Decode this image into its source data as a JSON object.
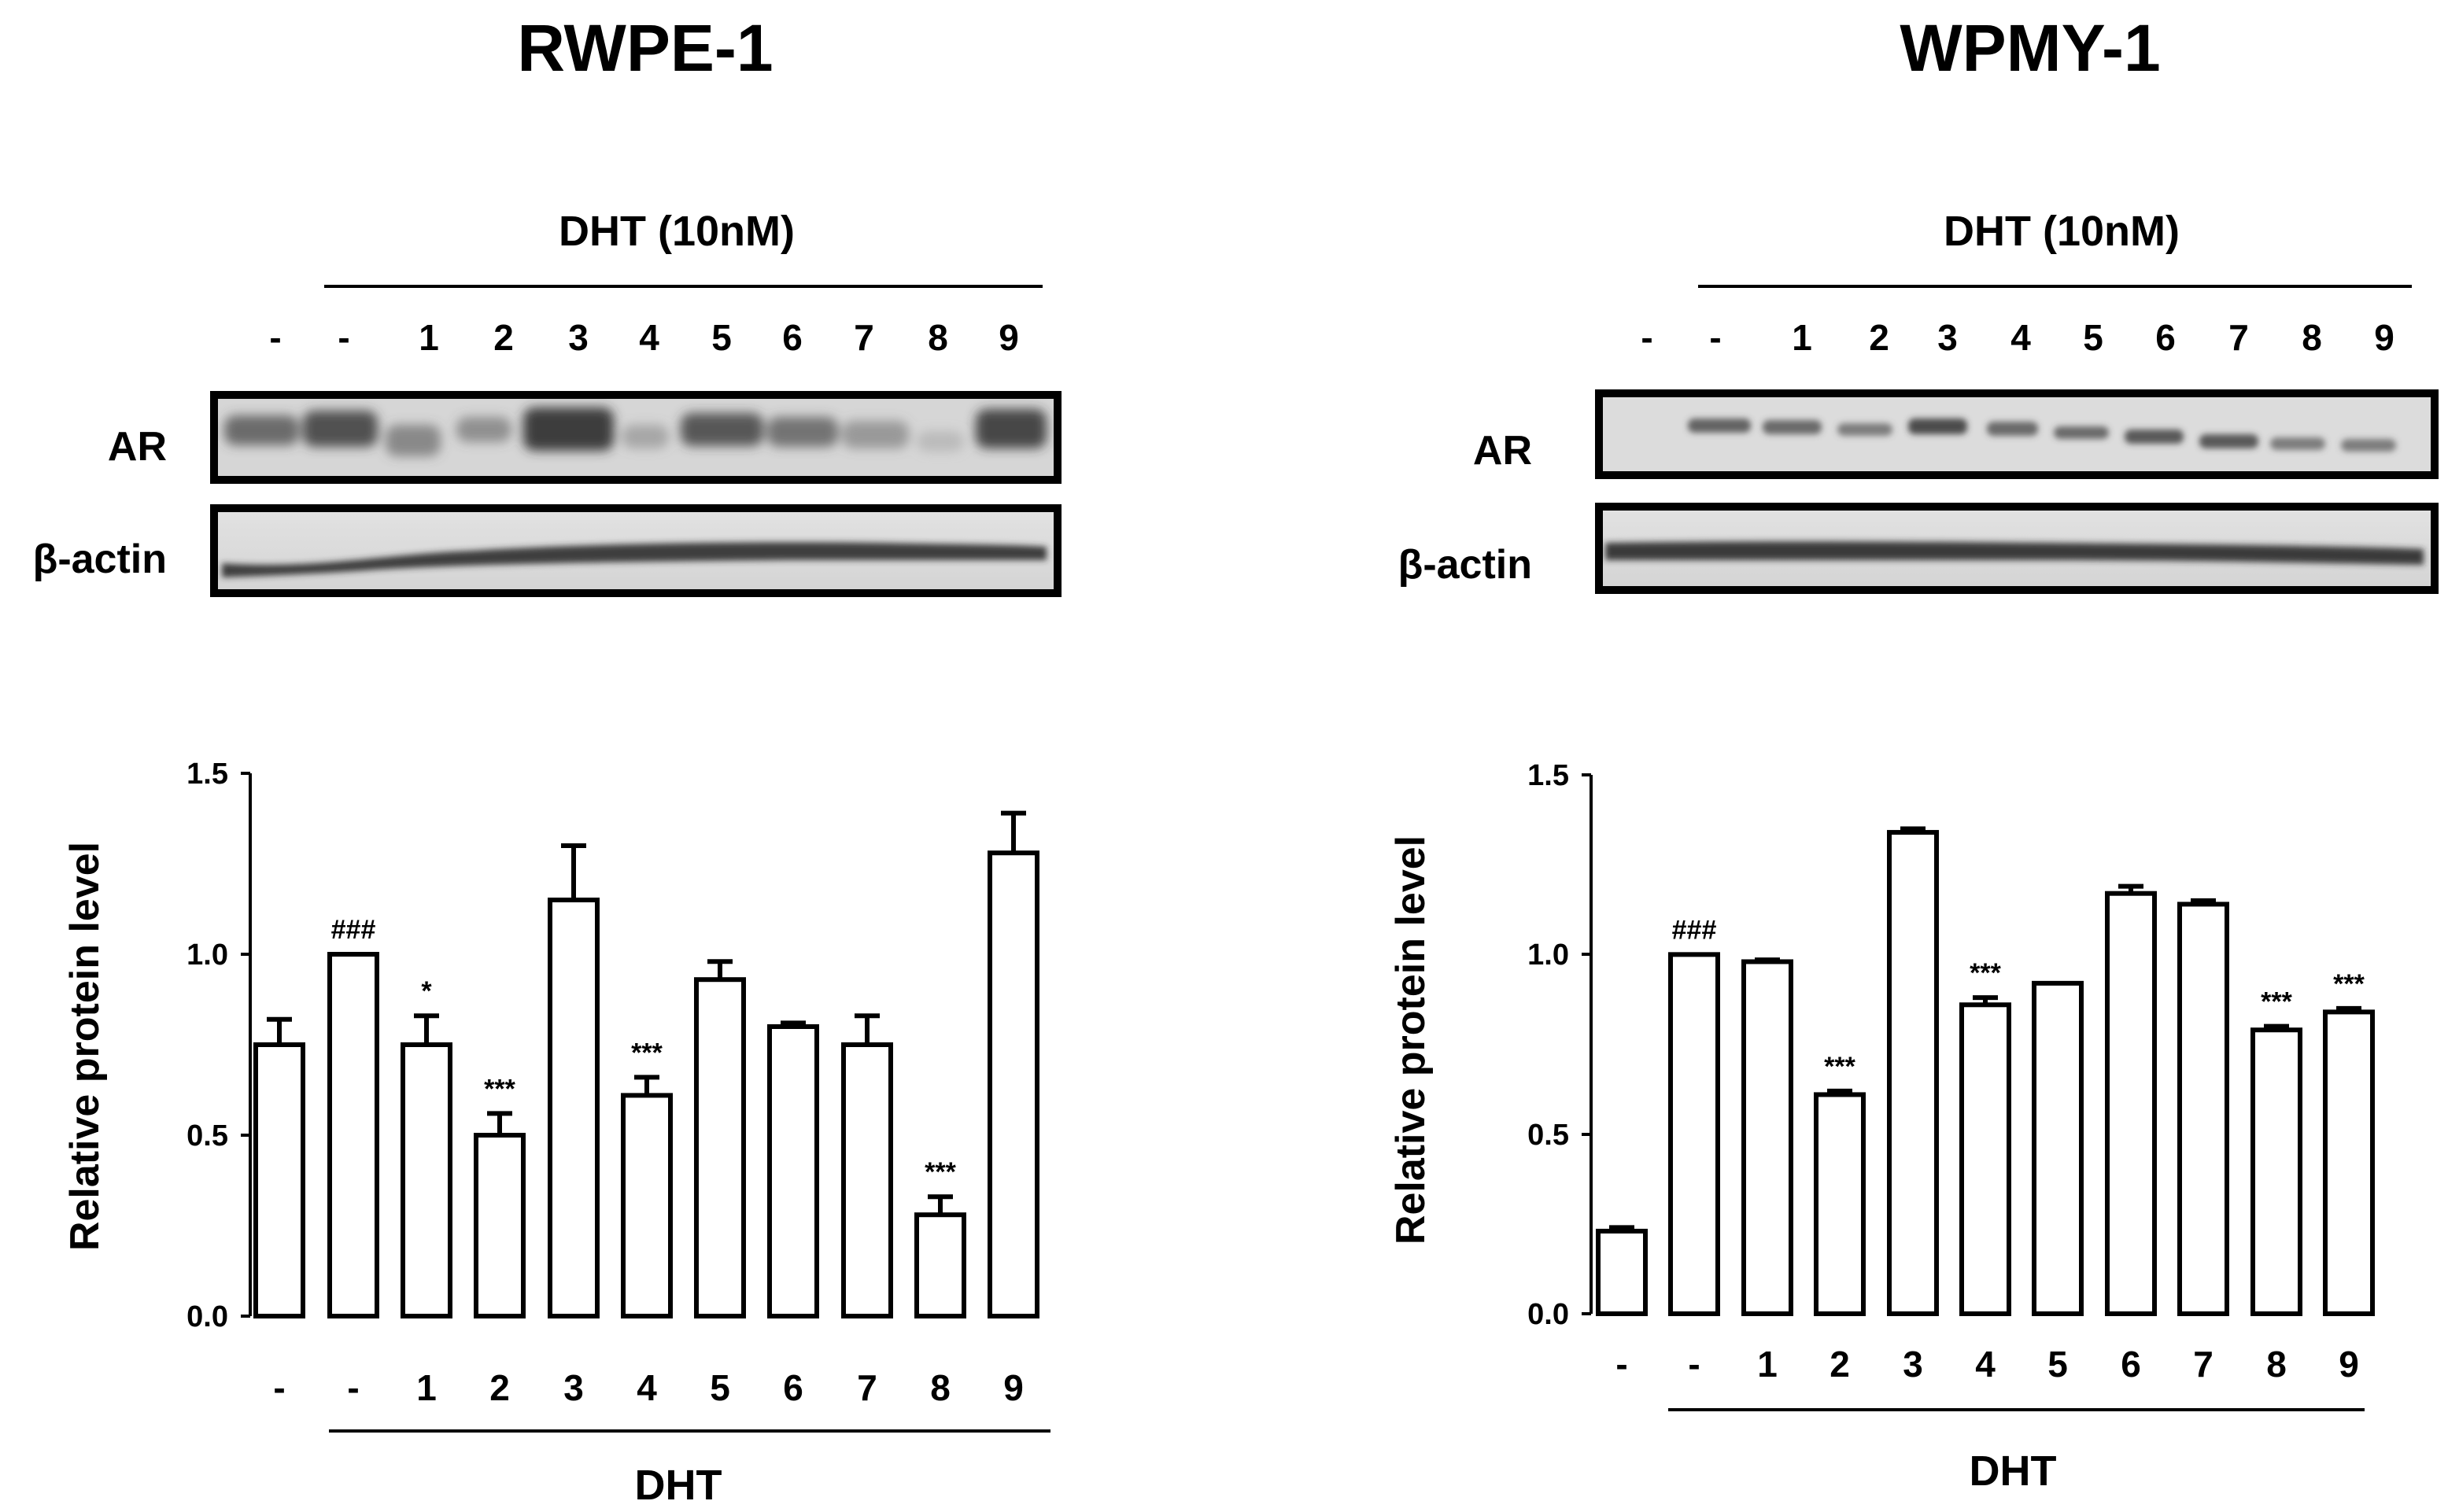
{
  "chart_data": [
    {
      "type": "bar",
      "title": "RWPE-1",
      "treatment_label": "DHT (10nM)",
      "blot_rows": [
        "AR",
        "β-actin"
      ],
      "categories": [
        "-",
        "-",
        "1",
        "2",
        "3",
        "4",
        "5",
        "6",
        "7",
        "8",
        "9"
      ],
      "values": [
        0.75,
        1.0,
        0.75,
        0.5,
        1.15,
        0.61,
        0.93,
        0.8,
        0.75,
        0.28,
        1.28
      ],
      "errors": [
        0.07,
        0.0,
        0.08,
        0.06,
        0.15,
        0.05,
        0.05,
        0.01,
        0.08,
        0.05,
        0.11
      ],
      "annotations": [
        "",
        "###",
        "*",
        "***",
        "",
        "***",
        "",
        "",
        "",
        "***",
        ""
      ],
      "xlabel": "DHT",
      "ylabel": "Relative protein level",
      "ylim": [
        0,
        1.5
      ],
      "yticks": [
        "0.0",
        "0.5",
        "1.0",
        "1.5"
      ]
    },
    {
      "type": "bar",
      "title": "WPMY-1",
      "treatment_label": "DHT (10nM)",
      "blot_rows": [
        "AR",
        "β-actin"
      ],
      "categories": [
        "-",
        "-",
        "1",
        "2",
        "3",
        "4",
        "5",
        "6",
        "7",
        "8",
        "9"
      ],
      "values": [
        0.23,
        1.0,
        0.98,
        0.61,
        1.34,
        0.86,
        0.92,
        1.17,
        1.14,
        0.79,
        0.84
      ],
      "errors": [
        0.01,
        0.0,
        0.005,
        0.01,
        0.01,
        0.02,
        0.0,
        0.02,
        0.01,
        0.01,
        0.01
      ],
      "annotations": [
        "",
        "###",
        "",
        "***",
        "",
        "***",
        "",
        "",
        "",
        "***",
        "***"
      ],
      "xlabel": "DHT",
      "ylabel": "Relative protein level",
      "ylim": [
        0,
        1.5
      ],
      "yticks": [
        "0.0",
        "0.5",
        "1.0",
        "1.5"
      ]
    }
  ]
}
